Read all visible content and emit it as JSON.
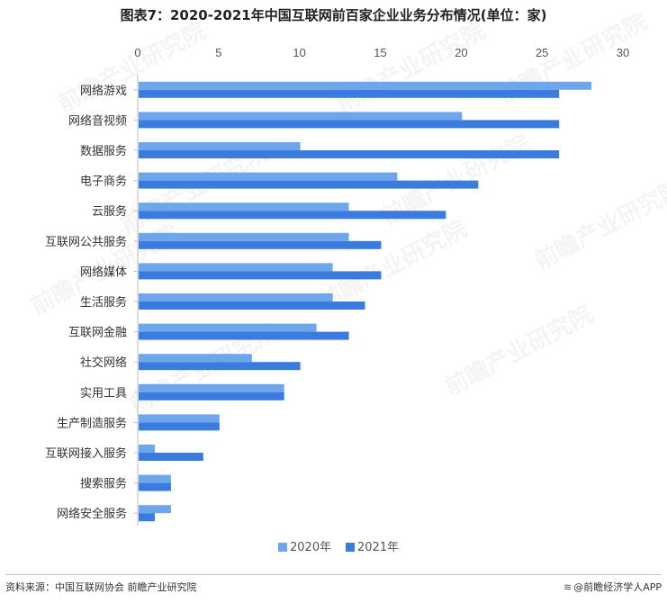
{
  "title": "图表7：2020-2021年中国互联网前百家企业业务分布情况(单位：家)",
  "chart_data": {
    "type": "bar",
    "orientation": "horizontal",
    "categories": [
      "网络游戏",
      "网络音视频",
      "数据服务",
      "电子商务",
      "云服务",
      "互联网公共服务",
      "网络媒体",
      "生活服务",
      "互联网金融",
      "社交网络",
      "实用工具",
      "生产制造服务",
      "互联网接入服务",
      "搜索服务",
      "网络安全服务"
    ],
    "series": [
      {
        "name": "2020年",
        "color": "#6ea6ec",
        "values": [
          28,
          20,
          10,
          16,
          13,
          13,
          12,
          12,
          11,
          7,
          9,
          5,
          1,
          2,
          2
        ]
      },
      {
        "name": "2021年",
        "color": "#3a7be0",
        "values": [
          26,
          26,
          26,
          21,
          19,
          15,
          15,
          14,
          13,
          10,
          9,
          5,
          4,
          2,
          1
        ]
      }
    ],
    "xlim": [
      0,
      30
    ],
    "xticks": [
      "0",
      "5",
      "10",
      "15",
      "20",
      "25",
      "30"
    ],
    "axis_position": "top",
    "grid": false,
    "legend_position": "bottom"
  },
  "watermark_text": "前瞻产业研究院",
  "footer": {
    "source": "资料来源：中国互联网协会 前瞻产业研究院",
    "brand": "@前瞻经济学人APP",
    "brand_icon": "wave-logo-icon"
  }
}
